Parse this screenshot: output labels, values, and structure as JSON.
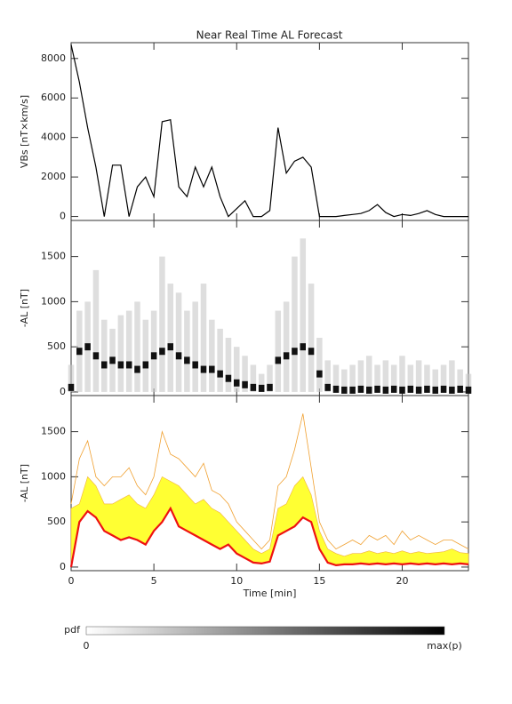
{
  "chart_data": [
    {
      "type": "line",
      "title": "Near Real Time AL Forecast",
      "ylabel": "VBs [nT×km/s]",
      "color": "#000000",
      "x": [
        0,
        0.5,
        1,
        1.5,
        2,
        2.5,
        3,
        3.5,
        4,
        4.5,
        5,
        5.5,
        6,
        6.5,
        7,
        7.5,
        8,
        8.5,
        9,
        9.5,
        10,
        10.5,
        11,
        11.5,
        12,
        12.5,
        13,
        13.5,
        14,
        14.5,
        15,
        15.5,
        16,
        16.5,
        17,
        17.5,
        18,
        18.5,
        19,
        19.5,
        20,
        20.5,
        21,
        21.5,
        22,
        22.5,
        23,
        23.5,
        24
      ],
      "values": [
        8700,
        6800,
        4500,
        2500,
        0,
        2600,
        2600,
        0,
        1500,
        2000,
        1000,
        4800,
        4900,
        1500,
        1000,
        2500,
        1500,
        2500,
        1000,
        0,
        400,
        800,
        0,
        0,
        300,
        4500,
        2200,
        2800,
        3000,
        2500,
        0,
        0,
        0,
        50,
        100,
        150,
        300,
        600,
        200,
        0,
        100,
        50,
        150,
        300,
        100,
        0,
        0,
        0,
        0
      ],
      "xlim": [
        0,
        24
      ],
      "xticks": [
        0,
        5,
        10,
        15,
        20
      ],
      "ylim": [
        -200,
        8800
      ],
      "yticks": [
        0,
        2000,
        4000,
        6000,
        8000
      ]
    },
    {
      "type": "heatmap",
      "ylabel": "-AL [nT]",
      "x": [
        0,
        0.5,
        1,
        1.5,
        2,
        2.5,
        3,
        3.5,
        4,
        4.5,
        5,
        5.5,
        6,
        6.5,
        7,
        7.5,
        8,
        8.5,
        9,
        9.5,
        10,
        10.5,
        11,
        11.5,
        12,
        12.5,
        13,
        13.5,
        14,
        14.5,
        15,
        15.5,
        16,
        16.5,
        17,
        17.5,
        18,
        18.5,
        19,
        19.5,
        20,
        20.5,
        21,
        21.5,
        22,
        22.5,
        23,
        23.5,
        24
      ],
      "series": [
        {
          "color": "#c8c8c8",
          "values": [
            300,
            900,
            1000,
            1350,
            800,
            700,
            850,
            900,
            1000,
            800,
            900,
            1500,
            1200,
            1100,
            900,
            1000,
            1200,
            800,
            700,
            600,
            500,
            400,
            300,
            200,
            300,
            900,
            1000,
            1500,
            1700,
            1200,
            600,
            350,
            300,
            250,
            300,
            350,
            400,
            300,
            350,
            300,
            400,
            300,
            350,
            300,
            250,
            300,
            350,
            250,
            200
          ]
        },
        {
          "color": "#111111",
          "values": [
            50,
            450,
            500,
            400,
            300,
            350,
            300,
            300,
            250,
            300,
            400,
            450,
            500,
            400,
            350,
            300,
            250,
            250,
            200,
            150,
            100,
            80,
            50,
            40,
            50,
            350,
            400,
            450,
            500,
            450,
            200,
            50,
            30,
            20,
            20,
            30,
            20,
            30,
            20,
            30,
            20,
            30,
            20,
            30,
            20,
            30,
            20,
            30,
            20
          ]
        }
      ],
      "xlim": [
        0,
        24
      ],
      "xticks": [
        0,
        5,
        10,
        15,
        20
      ],
      "ylim": [
        -40,
        1900
      ],
      "yticks": [
        0,
        500,
        1000,
        1500
      ]
    },
    {
      "type": "area",
      "ylabel": "-AL [nT]",
      "xlabel": "Time [min]",
      "x": [
        0,
        0.5,
        1,
        1.5,
        2,
        2.5,
        3,
        3.5,
        4,
        4.5,
        5,
        5.5,
        6,
        6.5,
        7,
        7.5,
        8,
        8.5,
        9,
        9.5,
        10,
        10.5,
        11,
        11.5,
        12,
        12.5,
        13,
        13.5,
        14,
        14.5,
        15,
        15.5,
        16,
        16.5,
        17,
        17.5,
        18,
        18.5,
        19,
        19.5,
        20,
        20.5,
        21,
        21.5,
        22,
        22.5,
        23,
        23.5,
        24
      ],
      "series": [
        {
          "color": "#ffff33",
          "values": [
            650,
            700,
            1000,
            900,
            700,
            700,
            750,
            800,
            700,
            650,
            800,
            1000,
            950,
            900,
            800,
            700,
            750,
            650,
            600,
            500,
            400,
            300,
            200,
            150,
            200,
            650,
            700,
            900,
            1000,
            800,
            400,
            200,
            150,
            120,
            150,
            150,
            180,
            150,
            170,
            150,
            180,
            150,
            170,
            150,
            160,
            170,
            200,
            160,
            150
          ]
        },
        {
          "color": "#f0a030",
          "values": [
            700,
            1200,
            1400,
            1000,
            900,
            1000,
            1000,
            1100,
            900,
            800,
            1000,
            1500,
            1250,
            1200,
            1100,
            1000,
            1150,
            850,
            800,
            700,
            500,
            400,
            300,
            200,
            300,
            900,
            1000,
            1300,
            1700,
            1100,
            500,
            300,
            200,
            250,
            300,
            250,
            350,
            300,
            350,
            250,
            400,
            300,
            350,
            300,
            250,
            300,
            300,
            250,
            200
          ]
        },
        {
          "color": "#ee1111",
          "values": [
            0,
            500,
            620,
            550,
            400,
            350,
            300,
            330,
            300,
            250,
            400,
            500,
            650,
            450,
            400,
            350,
            300,
            250,
            200,
            250,
            150,
            100,
            50,
            40,
            60,
            350,
            400,
            450,
            550,
            500,
            200,
            50,
            20,
            30,
            30,
            40,
            30,
            40,
            30,
            40,
            30,
            40,
            30,
            40,
            30,
            40,
            30,
            40,
            30
          ]
        }
      ],
      "xlim": [
        0,
        24
      ],
      "xticks": [
        0,
        5,
        10,
        15,
        20
      ],
      "ylim": [
        -40,
        1900
      ],
      "yticks": [
        0,
        500,
        1000,
        1500
      ]
    }
  ],
  "colorbar": {
    "label": "pdf",
    "min_label": "0",
    "max_label": "max(p)"
  }
}
